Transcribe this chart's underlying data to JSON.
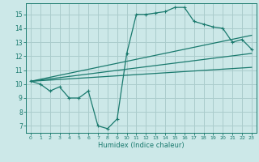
{
  "xlabel": "Humidex (Indice chaleur)",
  "background_color": "#cce8e8",
  "grid_color": "#aacccc",
  "line_color": "#1a7a6e",
  "xlim": [
    -0.5,
    23.5
  ],
  "ylim": [
    6.5,
    15.8
  ],
  "yticks": [
    7,
    8,
    9,
    10,
    11,
    12,
    13,
    14,
    15
  ],
  "xticks": [
    0,
    1,
    2,
    3,
    4,
    5,
    6,
    7,
    8,
    9,
    10,
    11,
    12,
    13,
    14,
    15,
    16,
    17,
    18,
    19,
    20,
    21,
    22,
    23
  ],
  "line1_x": [
    0,
    1,
    2,
    3,
    4,
    5,
    6,
    7,
    8,
    9,
    10,
    11,
    12,
    13,
    14,
    15,
    16,
    17,
    18,
    19,
    20,
    21,
    22,
    23
  ],
  "line1_y": [
    10.2,
    10.0,
    9.5,
    9.8,
    9.0,
    9.0,
    9.5,
    7.0,
    6.8,
    7.5,
    12.2,
    15.0,
    15.0,
    15.1,
    15.2,
    15.5,
    15.5,
    14.5,
    14.3,
    14.1,
    14.0,
    13.0,
    13.2,
    12.5
  ],
  "line2_x": [
    0,
    23
  ],
  "line2_y": [
    10.2,
    13.5
  ],
  "line3_x": [
    0,
    23
  ],
  "line3_y": [
    10.2,
    12.2
  ],
  "line4_x": [
    0,
    23
  ],
  "line4_y": [
    10.2,
    11.2
  ]
}
